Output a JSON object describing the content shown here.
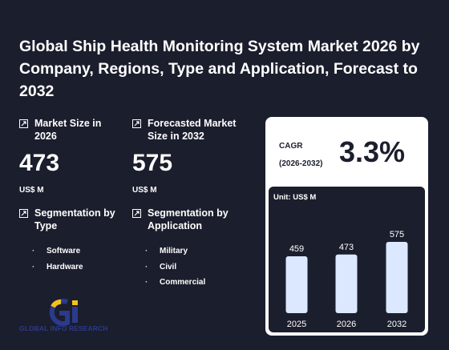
{
  "title": "Global Ship Health Monitoring System Market 2026 by Company, Regions, Type and Application, Forecast to 2032",
  "market_size": {
    "label": "Market Size in 2026",
    "value": "473",
    "unit": "US$ M"
  },
  "forecast": {
    "label": "Forecasted Market Size in 2032",
    "value": "575",
    "unit": "US$ M"
  },
  "segment_type": {
    "label": "Segmentation by Type",
    "items": [
      "Software",
      "Hardware"
    ]
  },
  "segment_app": {
    "label": "Segmentation by Application",
    "items": [
      "Military",
      "Civil",
      "Commercial"
    ]
  },
  "logo_text": "GLOBAL INFO RESEARCH",
  "cagr": {
    "label_line1": "CAGR",
    "label_line2": "(2026-2032)",
    "value": "3.3%"
  },
  "chart_data": {
    "type": "bar",
    "unit_label": "Unit: US$ M",
    "categories": [
      "2025",
      "2026",
      "2032"
    ],
    "values": [
      459,
      473,
      575
    ],
    "ylim": [
      0,
      575
    ],
    "bar_color": "#dbe8ff"
  },
  "colors": {
    "background": "#1b1e2c",
    "card": "#ffffff",
    "logo_blue": "#2b3a8c",
    "logo_yellow": "#f2c21b"
  }
}
